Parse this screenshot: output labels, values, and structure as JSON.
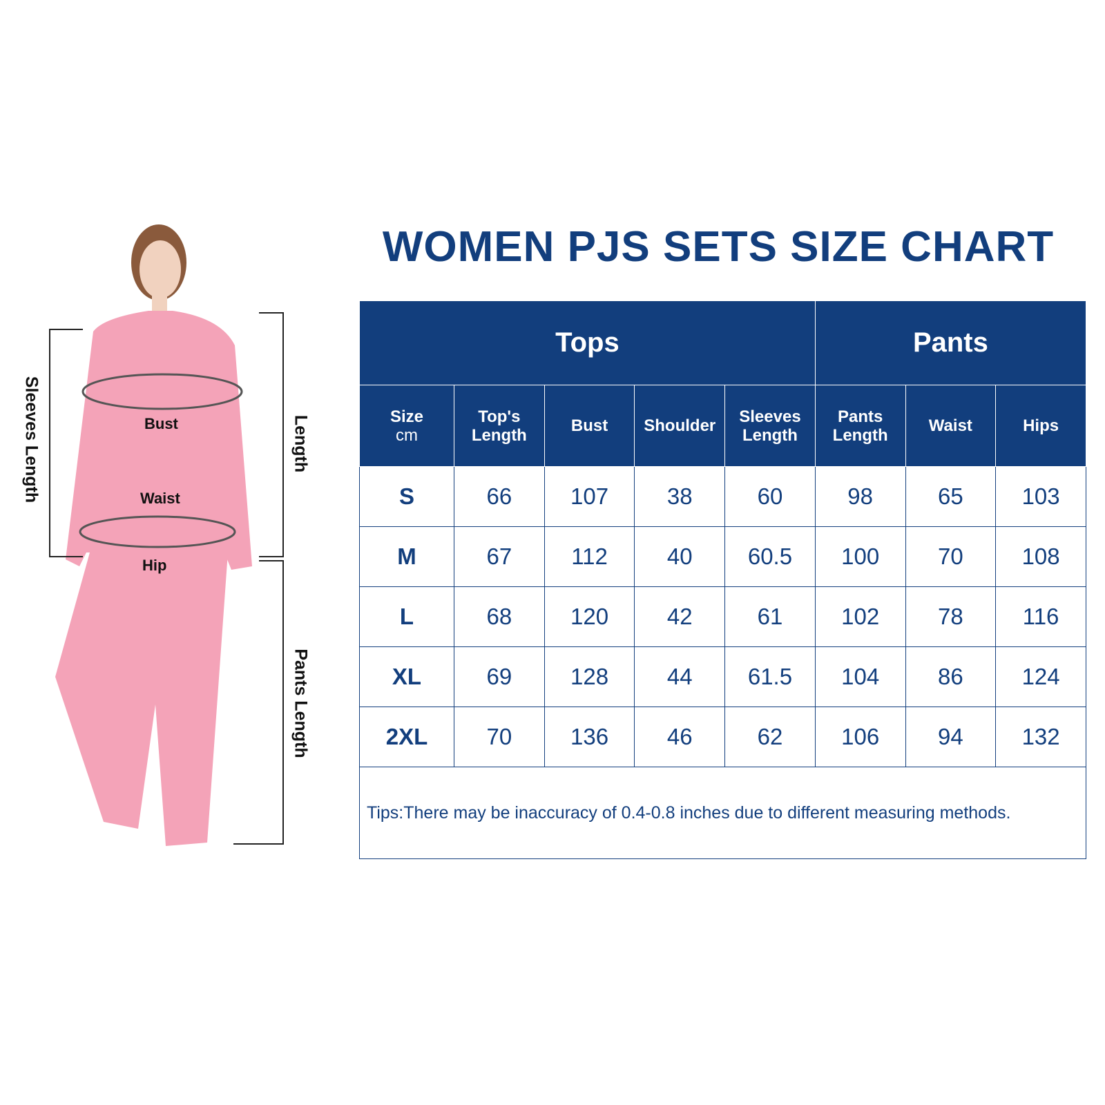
{
  "title": "WOMEN PJS SETS SIZE CHART",
  "figure": {
    "bust": "Bust",
    "waist": "Waist",
    "hip": "Hip",
    "sleeves_length": "Sleeves Length",
    "length": "Length",
    "pants_length": "Pants Length"
  },
  "table": {
    "groups": [
      "Tops",
      "Pants"
    ],
    "size_header": "Size",
    "unit": "cm",
    "columns": [
      "Top's Length",
      "Bust",
      "Shoulder",
      "Sleeves Length",
      "Pants Length",
      "Waist",
      "Hips"
    ],
    "rows": [
      {
        "size": "S",
        "values": [
          "66",
          "107",
          "38",
          "60",
          "98",
          "65",
          "103"
        ]
      },
      {
        "size": "M",
        "values": [
          "67",
          "112",
          "40",
          "60.5",
          "100",
          "70",
          "108"
        ]
      },
      {
        "size": "L",
        "values": [
          "68",
          "120",
          "42",
          "61",
          "102",
          "78",
          "116"
        ]
      },
      {
        "size": "XL",
        "values": [
          "69",
          "128",
          "44",
          "61.5",
          "104",
          "86",
          "124"
        ]
      },
      {
        "size": "2XL",
        "values": [
          "70",
          "136",
          "46",
          "62",
          "106",
          "94",
          "132"
        ]
      }
    ],
    "tips": "Tips:There may be inaccuracy of 0.4-0.8 inches due to different measuring methods."
  },
  "colors": {
    "brand": "#123e7d",
    "garment": "#f4a3b8"
  }
}
